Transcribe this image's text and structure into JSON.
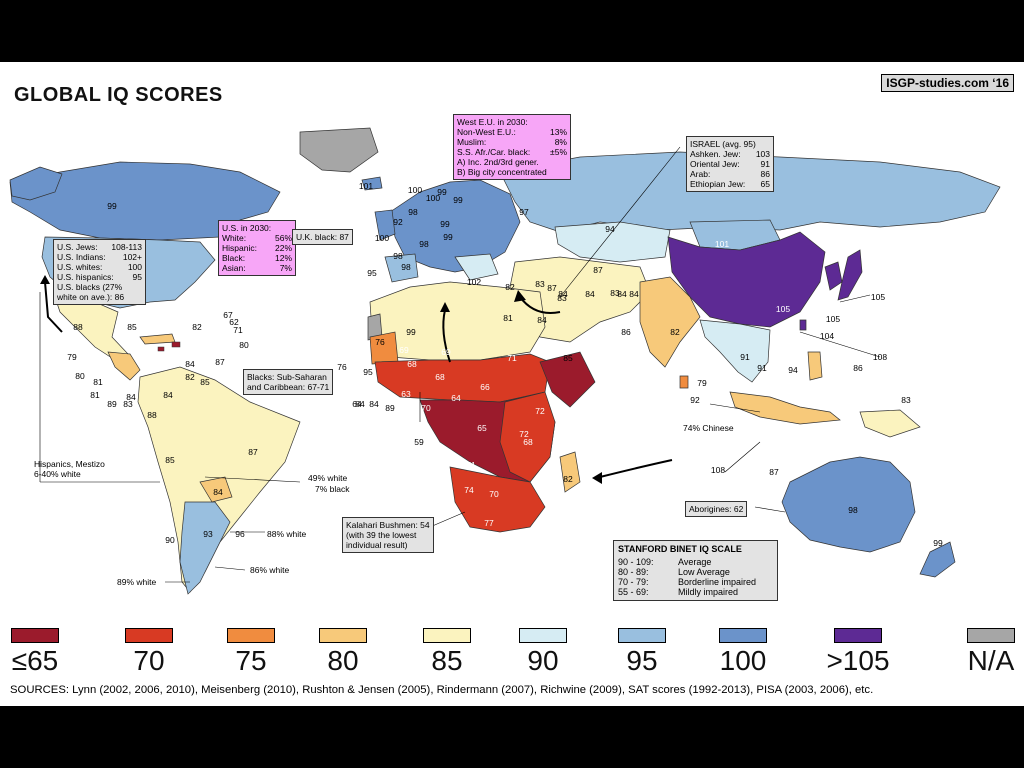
{
  "title": "GLOBAL IQ SCORES",
  "credit": "ISGP-studies.com ‘16",
  "colors": {
    "c65": "#9b1b2c",
    "c70": "#d83a23",
    "c75": "#f08c3f",
    "c80": "#f7c97a",
    "c85": "#fbf3bf",
    "c90": "#d6ecf3",
    "c95": "#99bfdf",
    "c100": "#6b93ca",
    "c105": "#5d2a94",
    "na": "#a6a6a6"
  },
  "boxes": {
    "us2030": {
      "title": "U.S. in 2030:",
      "rows": [
        [
          "White:",
          "56%"
        ],
        [
          "Hispanic:",
          "22%"
        ],
        [
          "Black:",
          "12%"
        ],
        [
          "Asian:",
          "7%"
        ]
      ]
    },
    "usgroups": {
      "rows": [
        [
          "U.S. Jews:",
          "108-113"
        ],
        [
          "U.S. Indians:",
          "102+"
        ],
        [
          "U.S. whites:",
          "100"
        ],
        [
          "U.S. hispanics:",
          "95"
        ]
      ],
      "line1": "U.S. blacks (27%",
      "line2": "white on ave.): 86"
    },
    "westeu": {
      "title": "West E.U. in 2030:",
      "rows": [
        [
          "Non-West E.U.:",
          "13%"
        ],
        [
          "Muslim:",
          "8%"
        ],
        [
          "S.S. Afr./Car. black:",
          "±5%"
        ]
      ],
      "line1": "A) Inc. 2nd/3rd gener.",
      "line2": "B) Big city concentrated"
    },
    "israel": {
      "title": "ISRAEL (avg. 95)",
      "rows": [
        [
          "Ashken. Jew:",
          "103"
        ],
        [
          "Oriental Jew:",
          "91"
        ],
        [
          "Arab:",
          "86"
        ],
        [
          "Ethiopian Jew:",
          "65"
        ]
      ]
    },
    "ukblack": "U.K. black: 87",
    "blacks": {
      "line1": "Blacks: Sub-Saharan",
      "line2": "and Caribbean: 67-71"
    },
    "hispanics": {
      "line1": "Hispanics, Mestizo",
      "line2": "6-40% white"
    },
    "kalahari": {
      "line1": "Kalahari Bushmen: 54",
      "line2": "(with 39 the lowest",
      "line3": "individual result)"
    },
    "aborigines": "Aborigines: 62"
  },
  "notes": {
    "chinese": "74% Chinese",
    "w49": "49% white",
    "b7": "7% black",
    "w88": "88% white",
    "w86": "86% white",
    "w89": "89% white"
  },
  "scale": {
    "title": "STANFORD BINET IQ SCALE",
    "rows": [
      [
        "90 - 109:",
        "Average"
      ],
      [
        "80 - 89:",
        "Low Average"
      ],
      [
        "70 - 79:",
        "Borderline impaired"
      ],
      [
        "55 - 69:",
        "Mildly impaired"
      ]
    ]
  },
  "legend": [
    {
      "label": "≤65",
      "color": "#9b1b2c"
    },
    {
      "label": "70",
      "color": "#d83a23"
    },
    {
      "label": "75",
      "color": "#f08c3f"
    },
    {
      "label": "80",
      "color": "#f7c97a"
    },
    {
      "label": "85",
      "color": "#fbf3bf"
    },
    {
      "label": "90",
      "color": "#d6ecf3"
    },
    {
      "label": "95",
      "color": "#99bfdf"
    },
    {
      "label": "100",
      "color": "#6b93ca"
    },
    {
      "label": ">105",
      "color": "#5d2a94"
    },
    {
      "label": "N/A",
      "color": "#a6a6a6"
    }
  ],
  "sources": "SOURCES: Lynn (2002, 2006, 2010), Meisenberg (2010), Rushton & Jensen (2005), Rindermann (2007), Richwine (2009), SAT scores (1992-2013), PISA (2003, 2006), etc.",
  "scores": [
    "99",
    "101",
    "100",
    "100",
    "99",
    "99",
    "97",
    "98",
    "99",
    "92",
    "99",
    "100",
    "98",
    "98",
    "95",
    "98",
    "102",
    "82",
    "83",
    "87",
    "94",
    "101",
    "87",
    "84",
    "84",
    "84",
    "84",
    "86",
    "82",
    "83",
    "83",
    "81",
    "84",
    "85",
    "91",
    "91",
    "94",
    "105",
    "105",
    "105",
    "104",
    "108",
    "86",
    "79",
    "83",
    "92",
    "108",
    "87",
    "98",
    "99",
    "88",
    "79",
    "80",
    "81",
    "81",
    "89",
    "83",
    "85",
    "67",
    "71",
    "80",
    "62",
    "82",
    "82",
    "84",
    "85",
    "88",
    "84",
    "87",
    "84",
    "85",
    "87",
    "84",
    "90",
    "93",
    "96",
    "76",
    "69",
    "68",
    "71",
    "69",
    "64",
    "63",
    "68",
    "66",
    "67",
    "73",
    "70",
    "64",
    "65",
    "72",
    "72",
    "68",
    "71",
    "74",
    "70",
    "77",
    "82",
    "59",
    "76",
    "84",
    "84",
    "89",
    "67",
    "99",
    "95"
  ]
}
